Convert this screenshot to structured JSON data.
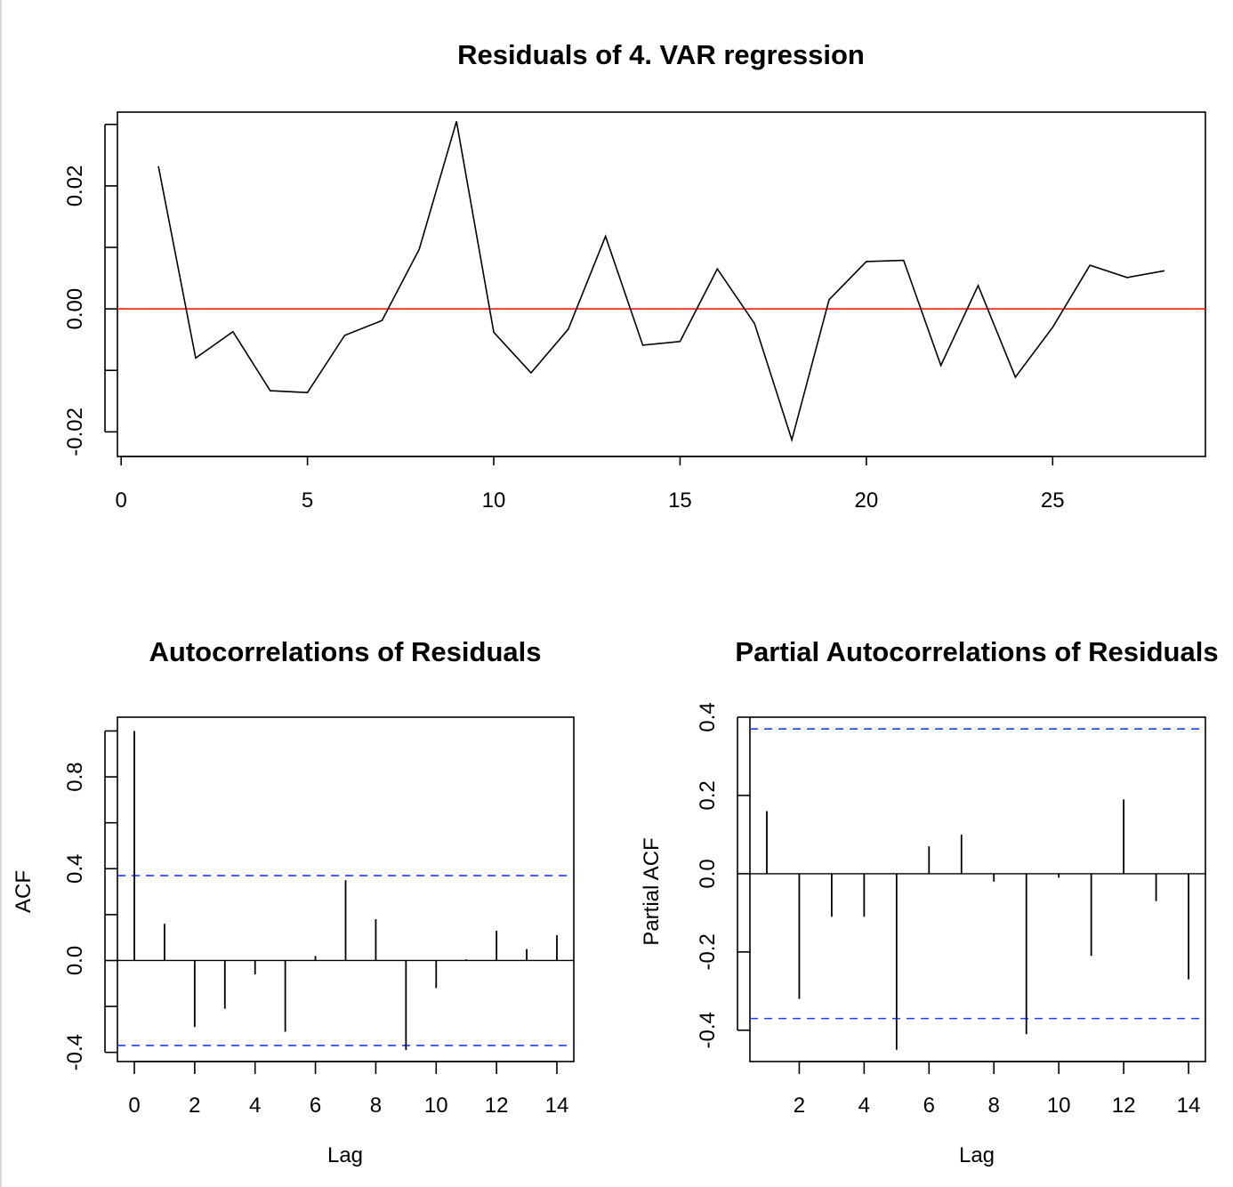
{
  "chart_data": [
    {
      "id": "residuals",
      "type": "line",
      "title": "Residuals of 4. VAR regression",
      "xlabel": "",
      "ylabel": "",
      "x": [
        1,
        2,
        3,
        4,
        5,
        6,
        7,
        8,
        9,
        10,
        11,
        12,
        13,
        14,
        15,
        16,
        17,
        18,
        19,
        20,
        21,
        22,
        23,
        24,
        25,
        26,
        27,
        28
      ],
      "values": [
        0.0232,
        -0.008,
        -0.0037,
        -0.0133,
        -0.0136,
        -0.0043,
        -0.0019,
        0.0097,
        0.0305,
        -0.0038,
        -0.0104,
        -0.0033,
        0.0118,
        -0.0059,
        -0.0053,
        0.0065,
        -0.0024,
        -0.0213,
        0.0015,
        0.0077,
        0.0079,
        -0.0092,
        0.0038,
        -0.0111,
        -0.003,
        0.0071,
        0.0051,
        0.0062
      ],
      "xlim": [
        -0.1,
        29.1
      ],
      "ylim": [
        -0.024,
        0.032
      ],
      "xticks": [
        0,
        5,
        10,
        15,
        20,
        25
      ],
      "xtick_labels": [
        "0",
        "5",
        "10",
        "15",
        "20",
        "25"
      ],
      "yticks": [
        -0.02,
        -0.01,
        0.0,
        0.01,
        0.02,
        0.03
      ],
      "ytick_labels": [
        "-0.02",
        "",
        "0.00",
        "",
        "0.02",
        ""
      ],
      "reference_line": {
        "value": 0,
        "color": "#ff2a1a"
      }
    },
    {
      "id": "acf",
      "type": "bar",
      "title": "Autocorrelations of Residuals",
      "xlabel": "Lag",
      "ylabel": "ACF",
      "lags": [
        0,
        1,
        2,
        3,
        4,
        5,
        6,
        7,
        8,
        9,
        10,
        11,
        12,
        13,
        14
      ],
      "values": [
        1.0,
        0.16,
        -0.29,
        -0.21,
        -0.06,
        -0.31,
        0.02,
        0.35,
        0.18,
        -0.39,
        -0.12,
        0.005,
        0.13,
        0.05,
        0.11
      ],
      "xlim": [
        -0.56,
        14.56
      ],
      "ylim": [
        -0.44,
        1.06
      ],
      "xticks": [
        0,
        2,
        4,
        6,
        8,
        10,
        12,
        14
      ],
      "xtick_labels": [
        "0",
        "2",
        "4",
        "6",
        "8",
        "10",
        "12",
        "14"
      ],
      "yticks": [
        -0.4,
        -0.2,
        0.0,
        0.2,
        0.4,
        0.6,
        0.8,
        1.0
      ],
      "ytick_labels": [
        "-0.4",
        "",
        "0.0",
        "",
        "0.4",
        "",
        "0.8",
        ""
      ],
      "confidence_band": [
        -0.37,
        0.37
      ],
      "ci_color": "#1f3cff"
    },
    {
      "id": "pacf",
      "type": "bar",
      "title": "Partial Autocorrelations of Residuals",
      "xlabel": "Lag",
      "ylabel": "Partial ACF",
      "lags": [
        1,
        2,
        3,
        4,
        5,
        6,
        7,
        8,
        9,
        10,
        11,
        12,
        13,
        14
      ],
      "values": [
        0.16,
        -0.32,
        -0.11,
        -0.11,
        -0.45,
        0.07,
        0.1,
        -0.02,
        -0.41,
        -0.01,
        -0.21,
        0.19,
        -0.07,
        -0.27
      ],
      "xlim": [
        0.48,
        14.52
      ],
      "ylim": [
        -0.48,
        0.4
      ],
      "xticks": [
        2,
        4,
        6,
        8,
        10,
        12,
        14
      ],
      "xtick_labels": [
        "2",
        "4",
        "6",
        "8",
        "10",
        "12",
        "14"
      ],
      "yticks": [
        -0.4,
        -0.2,
        0.0,
        0.2,
        0.4
      ],
      "ytick_labels": [
        "-0.4",
        "-0.2",
        "0.0",
        "0.2",
        "0.4"
      ],
      "confidence_band": [
        -0.37,
        0.37
      ],
      "ci_color": "#1f3cff"
    }
  ]
}
